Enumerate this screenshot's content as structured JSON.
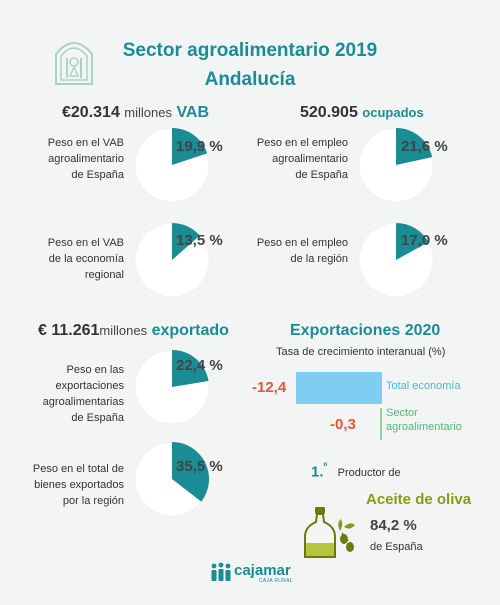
{
  "header": {
    "title_line1": "Sector agroalimentario 2019",
    "title_line2": "Andalucía"
  },
  "vab": {
    "prefix": "€",
    "value": "20.314",
    "unit": "millones",
    "tag": "VAB"
  },
  "empleo": {
    "value": "520.905",
    "tag": "ocupados"
  },
  "exportado": {
    "prefix": "€",
    "value": "11.261",
    "unit": "millones",
    "tag": "exportado"
  },
  "pies": [
    {
      "label_lines": [
        "Peso en el VAB",
        "agroalimentario",
        "de España"
      ],
      "value_text": "19,9 %"
    },
    {
      "label_lines": [
        "Peso en el empleo",
        "agroalimentario",
        "de España"
      ],
      "value_text": "21,6 %"
    },
    {
      "label_lines": [
        "Peso en el VAB",
        "de la economía",
        "regional"
      ],
      "value_text": "13,5 %"
    },
    {
      "label_lines": [
        "Peso en el empleo",
        "de la región"
      ],
      "value_text": "17,0 %"
    },
    {
      "label_lines": [
        "Peso en las",
        "exportaciones",
        "agroalimentarias",
        "de España"
      ],
      "value_text": "22,4 %"
    },
    {
      "label_lines": [
        "Peso en el total de",
        "bienes exportados",
        "por la región"
      ],
      "value_text": "35,5 %"
    }
  ],
  "exports": {
    "title": "Exportaciones 2020",
    "subtitle": "Tasa de crecimiento interanual (%)"
  },
  "producer": {
    "rank": "1.",
    "rank_sup": "º",
    "rank_suffix": "Productor de",
    "product": "Aceite de oliva",
    "share": "84,2 %",
    "share_label": "de España"
  },
  "footer": {
    "brand": "cajamar",
    "brand_sub": "CAJA RURAL"
  },
  "colors": {
    "teal": "#1a8c96",
    "pie_bg": "#ffffff",
    "bar_total": "#7fcdf0",
    "bar_sector": "#8ed6a6",
    "negative": "#e2573a",
    "olive": "#8c9a12"
  },
  "chart_data": [
    {
      "type": "pie",
      "title": "Peso en el VAB agroalimentario de España",
      "values": [
        19.9,
        80.1
      ]
    },
    {
      "type": "pie",
      "title": "Peso en el empleo agroalimentario de España",
      "values": [
        21.6,
        78.4
      ]
    },
    {
      "type": "pie",
      "title": "Peso en el VAB de la economía regional",
      "values": [
        13.5,
        86.5
      ]
    },
    {
      "type": "pie",
      "title": "Peso en el empleo de la región",
      "values": [
        17.0,
        83.0
      ]
    },
    {
      "type": "pie",
      "title": "Peso en las exportaciones agroalimentarias de España",
      "values": [
        22.4,
        77.6
      ]
    },
    {
      "type": "pie",
      "title": "Peso en el total de bienes exportados por la región",
      "values": [
        35.5,
        64.5
      ]
    },
    {
      "type": "bar",
      "title": "Exportaciones 2020",
      "ylabel": "Tasa de crecimiento interanual (%)",
      "categories": [
        "Total economía",
        "Sector agroalimentario"
      ],
      "values": [
        -12.4,
        -0.3
      ],
      "value_labels": [
        "-12,4",
        "-0,3"
      ]
    }
  ]
}
